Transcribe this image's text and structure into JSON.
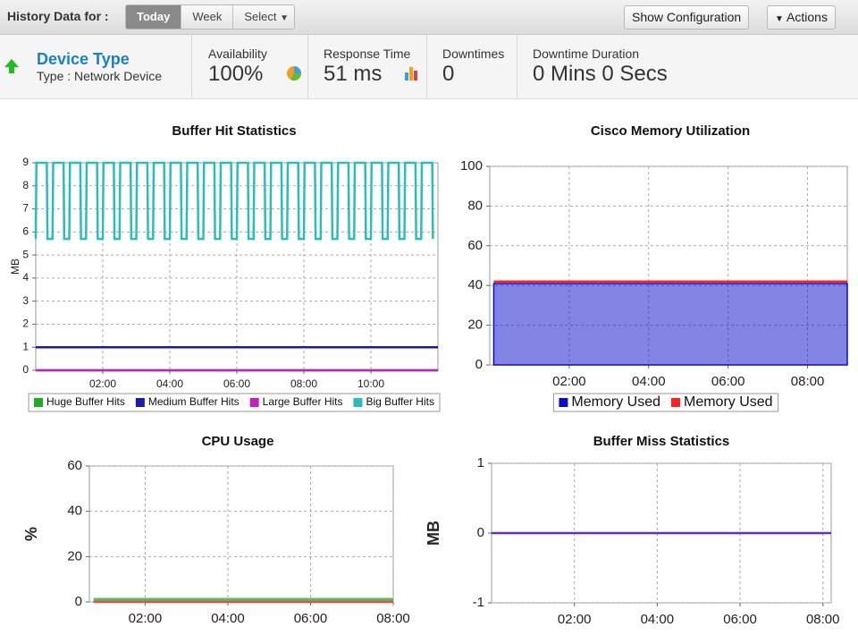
{
  "toolbar": {
    "label": "History Data for :",
    "buttons": [
      "Today",
      "Week",
      "Select"
    ],
    "show_configuration": "Show Configuration",
    "actions": "Actions"
  },
  "summary": {
    "device_title": "Device Type",
    "device_type": "Type : Network Device",
    "metrics": [
      {
        "label": "Availability",
        "value": "100%"
      },
      {
        "label": "Response Time",
        "value": "51 ms"
      },
      {
        "label": "Downtimes",
        "value": "0"
      },
      {
        "label": "Downtime Duration",
        "value": "0 Mins 0 Secs"
      }
    ]
  },
  "chart_data": [
    {
      "type": "line",
      "title": "Buffer Hit Statistics",
      "y_label": "MB",
      "grid": true,
      "legend": "bottom",
      "xlim": [
        0,
        12
      ],
      "xticks": [
        {
          "value": 2,
          "label": "02:00"
        },
        {
          "value": 4,
          "label": "04:00"
        },
        {
          "value": 6,
          "label": "06:00"
        },
        {
          "value": 8,
          "label": "08:00"
        },
        {
          "value": 10,
          "label": "10:00"
        }
      ],
      "ylim": [
        0,
        9
      ],
      "yticks": [
        0,
        1,
        2,
        3,
        4,
        5,
        6,
        7,
        8,
        9
      ],
      "series": [
        {
          "name": "Huge Buffer Hits",
          "color": "#22aa22",
          "x": [
            0,
            12
          ],
          "values": [
            0,
            0
          ]
        },
        {
          "name": "Medium Buffer Hits",
          "color": "#1a1aaa",
          "x": [
            0,
            12
          ],
          "values": [
            1,
            1
          ]
        },
        {
          "name": "Large Buffer Hits",
          "color": "#c020c0",
          "x": [
            0,
            12
          ],
          "values": [
            0,
            0
          ]
        },
        {
          "name": "Big Buffer Hits",
          "color": "#2bbcbc",
          "x": [
            0,
            0.02,
            0.33,
            0.35,
            0.5,
            0.52,
            0.83,
            0.85,
            1,
            1.02,
            1.33,
            1.35,
            1.5,
            1.52,
            1.83,
            1.85,
            2,
            2.02,
            2.33,
            2.35,
            2.5,
            2.52,
            2.83,
            2.85,
            3,
            3.02,
            3.33,
            3.35,
            3.5,
            3.52,
            3.83,
            3.85,
            4,
            4.02,
            4.33,
            4.35,
            4.5,
            4.52,
            4.83,
            4.85,
            5,
            5.02,
            5.33,
            5.35,
            5.5,
            5.52,
            5.83,
            5.85,
            6,
            6.02,
            6.33,
            6.35,
            6.5,
            6.52,
            6.83,
            6.85,
            7,
            7.02,
            7.33,
            7.35,
            7.5,
            7.52,
            7.83,
            7.85,
            8,
            8.02,
            8.33,
            8.35,
            8.5,
            8.52,
            8.83,
            8.85,
            9,
            9.02,
            9.33,
            9.35,
            9.5,
            9.52,
            9.83,
            9.85,
            10,
            10.02,
            10.33,
            10.35,
            10.5,
            10.52,
            10.83,
            10.85,
            11,
            11.02,
            11.33,
            11.35,
            11.5,
            11.52,
            11.83,
            11.85
          ],
          "values": [
            5.7,
            9,
            9,
            5.7,
            5.7,
            9,
            9,
            5.7,
            5.7,
            9,
            9,
            5.7,
            5.7,
            9,
            9,
            5.7,
            5.7,
            9,
            9,
            5.7,
            5.7,
            9,
            9,
            5.7,
            5.7,
            9,
            9,
            5.7,
            5.7,
            9,
            9,
            5.7,
            5.7,
            9,
            9,
            5.7,
            5.7,
            9,
            9,
            5.7,
            5.7,
            9,
            9,
            5.7,
            5.7,
            9,
            9,
            5.7,
            5.7,
            9,
            9,
            5.7,
            5.7,
            9,
            9,
            5.7,
            5.7,
            9,
            9,
            5.7,
            5.7,
            9,
            9,
            5.7,
            5.7,
            9,
            9,
            5.7,
            5.7,
            9,
            9,
            5.7,
            5.7,
            9,
            9,
            5.7,
            5.7,
            9,
            9,
            5.7,
            5.7,
            9,
            9,
            5.7,
            5.7,
            9,
            9,
            5.7,
            5.7,
            9,
            9,
            5.7,
            5.7,
            9,
            9,
            5.7
          ]
        }
      ]
    },
    {
      "type": "area",
      "title": "Cisco Memory Utilization",
      "grid": true,
      "legend": "bottom",
      "xlim": [
        0,
        9
      ],
      "xticks": [
        {
          "value": 2,
          "label": "02:00"
        },
        {
          "value": 4,
          "label": "04:00"
        },
        {
          "value": 6,
          "label": "06:00"
        },
        {
          "value": 8,
          "label": "08:00"
        }
      ],
      "ylim": [
        0,
        100
      ],
      "yticks": [
        0,
        20,
        40,
        60,
        80,
        100
      ],
      "series": [
        {
          "name": "Memory Used",
          "color": "#0a0acc",
          "area": true,
          "x": [
            0.1,
            9
          ],
          "values": [
            41,
            41
          ]
        },
        {
          "name": "Memory Used",
          "color": "#ff2020",
          "x": [
            0.1,
            9
          ],
          "values": [
            42,
            42
          ]
        }
      ]
    },
    {
      "type": "line",
      "title": "CPU Usage",
      "y_label": "%",
      "grid": true,
      "xlim": [
        0.65,
        8
      ],
      "xticks": [
        {
          "value": 2,
          "label": "02:00"
        },
        {
          "value": 4,
          "label": "04:00"
        },
        {
          "value": 6,
          "label": "06:00"
        },
        {
          "value": 8,
          "label": "08:00"
        }
      ],
      "ylim": [
        0,
        60
      ],
      "yticks": [
        0,
        20,
        40,
        60
      ],
      "series": [
        {
          "color": "#5cb85c",
          "x": [
            0.75,
            8
          ],
          "values": [
            1,
            1
          ]
        },
        {
          "color": "#e05050",
          "x": [
            0.75,
            8
          ],
          "values": [
            0,
            0
          ]
        }
      ]
    },
    {
      "type": "line",
      "title": "Buffer Miss Statistics",
      "y_label": "MB",
      "grid": true,
      "xlim": [
        0,
        8.2
      ],
      "xticks": [
        {
          "value": 2,
          "label": "02:00"
        },
        {
          "value": 4,
          "label": "04:00"
        },
        {
          "value": 6,
          "label": "06:00"
        },
        {
          "value": 8,
          "label": "08:00"
        }
      ],
      "ylim": [
        -1,
        1
      ],
      "yticks": [
        -1,
        0,
        1
      ],
      "series": [
        {
          "color": "#6a2fb0",
          "x": [
            0,
            8.2
          ],
          "values": [
            0,
            0
          ]
        }
      ]
    }
  ]
}
